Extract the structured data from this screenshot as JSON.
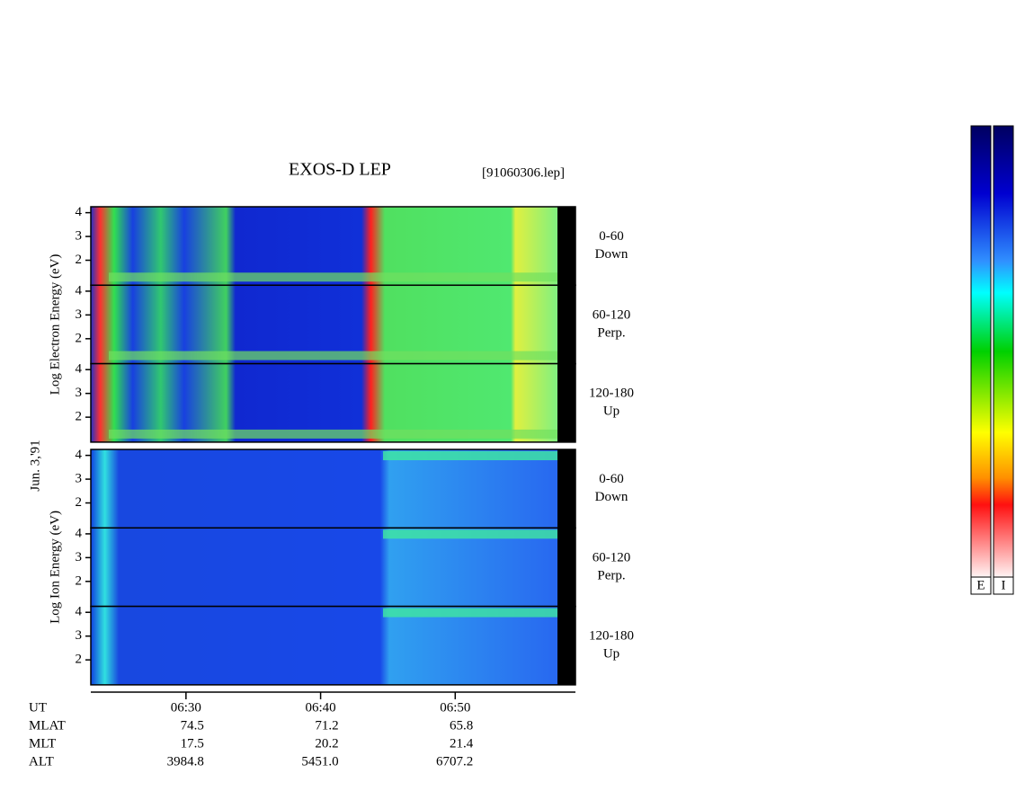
{
  "chart_data": {
    "type": "spectrogram",
    "title": "EXOS-D LEP",
    "file": "[91060306.lep]",
    "date": "Jun. 3,'91",
    "xlim": [
      22.93,
      58.93
    ],
    "xticks": [
      {
        "value": 30,
        "label": "06:30"
      },
      {
        "value": 40,
        "label": "06:40"
      },
      {
        "value": 50,
        "label": "06:50"
      }
    ],
    "ylim": [
      0.95,
      4.25
    ],
    "yticks": [
      2,
      3,
      4
    ],
    "groups": [
      {
        "ylabel": "Log Electron Energy (eV)",
        "panels": [
          {
            "angle": "0-60",
            "direction": "Down"
          },
          {
            "angle": "60-120",
            "direction": "Perp."
          },
          {
            "angle": "120-180",
            "direction": "Up"
          }
        ]
      },
      {
        "ylabel": "Log Ion Energy (eV)",
        "panels": [
          {
            "angle": "0-60",
            "direction": "Down"
          },
          {
            "angle": "60-120",
            "direction": "Perp."
          },
          {
            "angle": "120-180",
            "direction": "Up"
          }
        ]
      }
    ],
    "orbit": {
      "labels": [
        "UT",
        "MLAT",
        "MLT",
        "ALT"
      ],
      "rows": [
        [
          "74.5",
          "71.2",
          "65.8"
        ],
        [
          "17.5",
          "20.2",
          "21.4"
        ],
        [
          "3984.8",
          "5451.0",
          "6707.2"
        ]
      ]
    },
    "colorbars": [
      "E",
      "I"
    ]
  }
}
